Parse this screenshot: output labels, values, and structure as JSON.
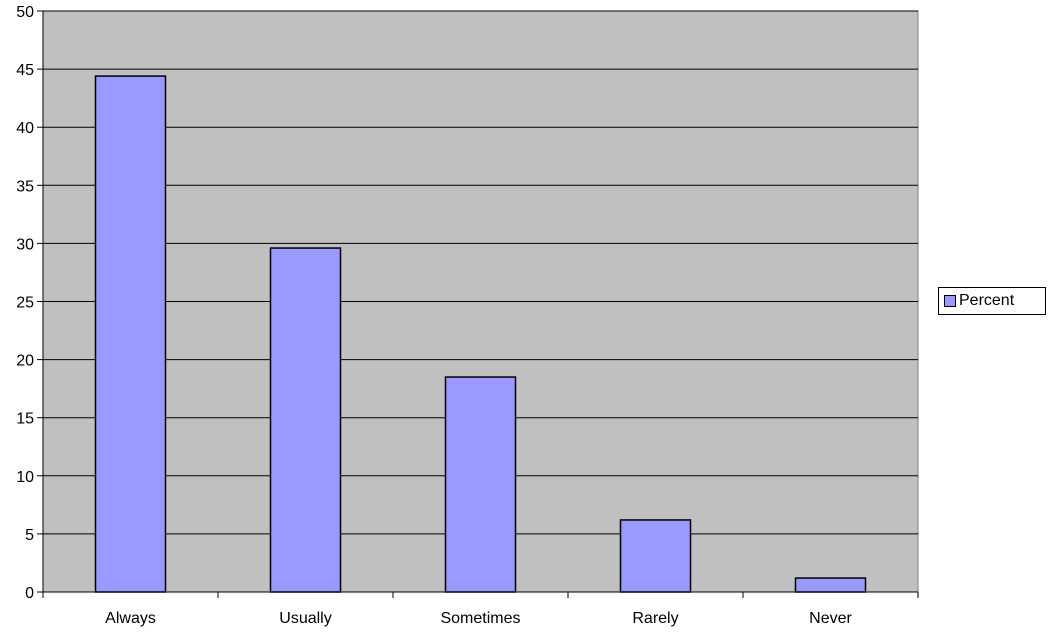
{
  "chart_data": {
    "type": "bar",
    "categories": [
      "Always",
      "Usually",
      "Sometimes",
      "Rarely",
      "Never"
    ],
    "series": [
      {
        "name": "Percent",
        "values": [
          44.4,
          29.6,
          18.5,
          6.2,
          1.2
        ]
      }
    ],
    "title": "",
    "xlabel": "",
    "ylabel": "",
    "ylim": [
      0,
      50
    ],
    "yticks": [
      "0",
      "5",
      "10",
      "15",
      "20",
      "25",
      "30",
      "35",
      "40",
      "45",
      "50"
    ],
    "grid": true,
    "legend_position": "right",
    "colors": {
      "bar": "#9999ff",
      "plot_background": "#c0c0c0",
      "gridline": "#000000"
    }
  }
}
